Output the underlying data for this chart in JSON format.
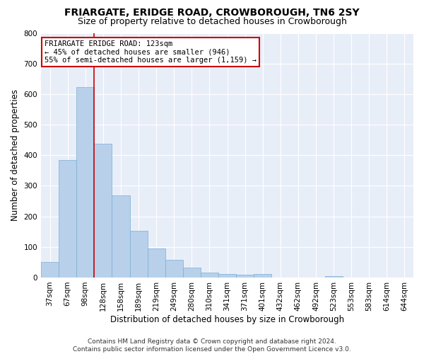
{
  "title": "FRIARGATE, ERIDGE ROAD, CROWBOROUGH, TN6 2SY",
  "subtitle": "Size of property relative to detached houses in Crowborough",
  "xlabel": "Distribution of detached houses by size in Crowborough",
  "ylabel": "Number of detached properties",
  "categories": [
    "37sqm",
    "67sqm",
    "98sqm",
    "128sqm",
    "158sqm",
    "189sqm",
    "219sqm",
    "249sqm",
    "280sqm",
    "310sqm",
    "341sqm",
    "371sqm",
    "401sqm",
    "432sqm",
    "462sqm",
    "492sqm",
    "523sqm",
    "553sqm",
    "583sqm",
    "614sqm",
    "644sqm"
  ],
  "values": [
    50,
    385,
    623,
    438,
    268,
    153,
    95,
    57,
    32,
    17,
    12,
    10,
    12,
    0,
    0,
    0,
    5,
    0,
    0,
    0,
    0
  ],
  "bar_color": "#b8d0ea",
  "bar_edge_color": "#7aafd4",
  "vline_x": 2.5,
  "vline_color": "#cc0000",
  "annotation_text": "FRIARGATE ERIDGE ROAD: 123sqm\n← 45% of detached houses are smaller (946)\n55% of semi-detached houses are larger (1,159) →",
  "annotation_box_color": "#ffffff",
  "annotation_box_edge": "#cc0000",
  "ylim": [
    0,
    800
  ],
  "yticks": [
    0,
    100,
    200,
    300,
    400,
    500,
    600,
    700,
    800
  ],
  "bg_color": "#e8eef8",
  "grid_color": "#ffffff",
  "footer": "Contains HM Land Registry data © Crown copyright and database right 2024.\nContains public sector information licensed under the Open Government Licence v3.0.",
  "title_fontsize": 10,
  "subtitle_fontsize": 9,
  "tick_fontsize": 7.5,
  "ylabel_fontsize": 8.5,
  "xlabel_fontsize": 8.5,
  "footer_fontsize": 6.5
}
